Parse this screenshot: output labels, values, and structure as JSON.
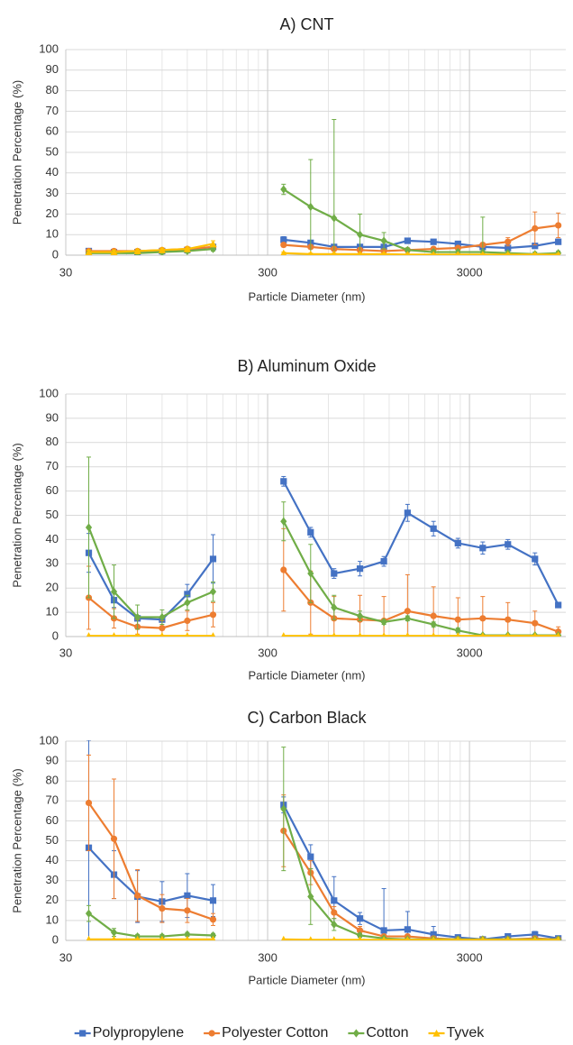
{
  "chart_data": [
    {
      "type": "line",
      "title": "A) CNT",
      "x_label": "Particle Diameter (nm)",
      "y_label": "Penetration Percentage (%)",
      "x": [
        39,
        52,
        68,
        90,
        120,
        161,
        360,
        490,
        640,
        860,
        1130,
        1480,
        1990,
        2630,
        3490,
        4650,
        6330,
        8260
      ],
      "xlim": [
        30,
        9000
      ],
      "xticks": [
        30,
        300,
        3000
      ],
      "log_x": true,
      "ylim": [
        0,
        100
      ],
      "yticks": [
        0,
        10,
        20,
        30,
        40,
        50,
        60,
        70,
        80,
        90,
        100
      ],
      "grid": true,
      "legend": "bottom",
      "series": [
        {
          "name": "Polypropylene",
          "color": "#4472c4",
          "marker": "square",
          "values": [
            2,
            1.5,
            1.5,
            2,
            2.5,
            4,
            7.5,
            6,
            4,
            4,
            4,
            7,
            6.5,
            5.5,
            4,
            3.5,
            4.5,
            6.5
          ],
          "errors": [
            1,
            1,
            1,
            1,
            1,
            1,
            1.5,
            1,
            1,
            1,
            1,
            1,
            1,
            1,
            1,
            1,
            1,
            1
          ]
        },
        {
          "name": "Polyester Cotton",
          "color": "#ed7d31",
          "marker": "circle",
          "values": [
            2,
            2,
            2,
            2.5,
            3,
            4,
            5,
            4,
            3,
            2.5,
            2,
            2.5,
            3,
            3.5,
            5,
            6.5,
            13,
            14.5
          ],
          "errors": [
            1,
            1,
            1,
            1,
            1,
            1,
            1,
            1,
            1,
            1,
            1,
            1,
            1,
            1,
            1,
            2,
            8,
            6
          ]
        },
        {
          "name": "Cotton",
          "color": "#70ad47",
          "marker": "diamond",
          "values": [
            1,
            1,
            1,
            1.5,
            2,
            3,
            32,
            23.5,
            18,
            10,
            7,
            2.5,
            1.5,
            1.5,
            1.5,
            1,
            0.5,
            1
          ],
          "errors": [
            1,
            1,
            1,
            1,
            1,
            1,
            2.5,
            23,
            48,
            10,
            4,
            1,
            1,
            1,
            17,
            1,
            1,
            1
          ]
        },
        {
          "name": "Tyvek",
          "color": "#ffc000",
          "marker": "triangle",
          "values": [
            1.5,
            1.5,
            2,
            2.5,
            3,
            5.5,
            1,
            0.5,
            0.5,
            0.5,
            0.5,
            0.3,
            0.3,
            0.3,
            0.3,
            0.3,
            0.3,
            0.3
          ],
          "errors": [
            1,
            1,
            1,
            1,
            1,
            1.5,
            0.5,
            0.5,
            0.5,
            0.5,
            0.5,
            0.5,
            0.5,
            0.5,
            0.5,
            0.5,
            0.5,
            0.5
          ]
        }
      ]
    },
    {
      "type": "line",
      "title": "B) Aluminum Oxide",
      "x_label": "Particle Diameter (nm)",
      "y_label": "Penetration Percentage (%)",
      "x": [
        39,
        52,
        68,
        90,
        120,
        161,
        360,
        490,
        640,
        860,
        1130,
        1480,
        1990,
        2630,
        3490,
        4650,
        6330,
        8260
      ],
      "xlim": [
        30,
        9000
      ],
      "xticks": [
        30,
        300,
        3000
      ],
      "log_x": true,
      "ylim": [
        0,
        100
      ],
      "yticks": [
        0,
        10,
        20,
        30,
        40,
        50,
        60,
        70,
        80,
        90,
        100
      ],
      "grid": true,
      "series": [
        {
          "color": "#4472c4",
          "marker": "square",
          "values": [
            34.5,
            15,
            7.5,
            7,
            17.5,
            32,
            64,
            43,
            26,
            28,
            31,
            51,
            44.5,
            38.5,
            36.5,
            38,
            32,
            13
          ],
          "errors": [
            8,
            3,
            1,
            1,
            4,
            10,
            2,
            2,
            2,
            3,
            2,
            3.5,
            3,
            2,
            2.5,
            2,
            2.5,
            1
          ]
        },
        {
          "color": "#ed7d31",
          "marker": "circle",
          "values": [
            16,
            7.5,
            4,
            3.5,
            6.5,
            9,
            27.5,
            14,
            7.5,
            7,
            6.5,
            10.5,
            8.5,
            7,
            7.5,
            7,
            5.5,
            2
          ],
          "errors": [
            13,
            4,
            3,
            3,
            4,
            5,
            17,
            13,
            9,
            10,
            10,
            15,
            12,
            9,
            9,
            7,
            5,
            2
          ]
        },
        {
          "color": "#70ad47",
          "marker": "diamond",
          "values": [
            45,
            18.5,
            8,
            8,
            14,
            18.5,
            47.5,
            26,
            12,
            8.5,
            6,
            7.5,
            5,
            2.5,
            0.5,
            0.5,
            0.5,
            0.5
          ],
          "errors": [
            29,
            11,
            5,
            3,
            3,
            4,
            8,
            12,
            5,
            2,
            1,
            1,
            1,
            1,
            0.5,
            0.5,
            0.5,
            0.5
          ]
        },
        {
          "color": "#ffc000",
          "marker": "triangle",
          "values": [
            0.3,
            0.3,
            0.3,
            0.3,
            0.3,
            0.3,
            0.3,
            0.3,
            0.3,
            0.3,
            0.3,
            0.3,
            0.3,
            0.3,
            0.3,
            0.3,
            0.3,
            0.3
          ],
          "errors": [
            0,
            0,
            0,
            0,
            0,
            0,
            0,
            0,
            0,
            0,
            0,
            0,
            0,
            0,
            0,
            0,
            0,
            0
          ]
        }
      ]
    },
    {
      "type": "line",
      "title": "C) Carbon Black",
      "x_label": "Particle Diameter (nm)",
      "y_label": "Penetration Percentage (%)",
      "x": [
        39,
        52,
        68,
        90,
        120,
        161,
        360,
        490,
        640,
        860,
        1130,
        1480,
        1990,
        2630,
        3490,
        4650,
        6330,
        8260
      ],
      "xlim": [
        30,
        9000
      ],
      "xticks": [
        30,
        300,
        3000
      ],
      "log_x": true,
      "ylim": [
        0,
        100
      ],
      "yticks": [
        0,
        10,
        20,
        30,
        40,
        50,
        60,
        70,
        80,
        90,
        100
      ],
      "grid": true,
      "series": [
        {
          "color": "#4472c4",
          "marker": "square",
          "values": [
            46.5,
            33,
            22,
            19.5,
            22.5,
            20,
            68,
            42,
            20,
            11,
            5,
            5.5,
            3,
            1.5,
            0.5,
            2,
            3,
            1
          ],
          "errors": [
            54,
            12,
            13,
            10,
            11,
            8,
            4,
            6,
            12,
            3,
            21,
            9,
            4,
            1,
            0.5,
            1,
            1.5,
            0.5
          ]
        },
        {
          "color": "#ed7d31",
          "marker": "circle",
          "values": [
            69,
            51,
            22.5,
            16,
            15,
            10.5,
            55,
            34,
            14,
            5,
            2,
            2,
            1,
            0.5,
            0.5,
            0.5,
            1,
            0.5
          ],
          "errors": [
            24,
            30,
            13,
            7,
            6,
            3,
            18,
            6,
            3,
            2,
            1,
            1,
            1,
            0.5,
            0.5,
            0.5,
            0.5,
            0.5
          ]
        },
        {
          "color": "#70ad47",
          "marker": "diamond",
          "values": [
            13.5,
            4,
            2,
            2,
            3,
            2.5,
            66,
            22,
            8,
            2.5,
            1,
            0.5,
            0.5,
            0.5,
            0.5,
            0.5,
            0.5,
            0.5
          ],
          "errors": [
            4,
            2,
            1,
            1,
            1,
            1,
            31,
            14,
            3,
            1,
            0.5,
            0.5,
            0.5,
            0.5,
            0.5,
            0.5,
            0.5,
            0.5
          ]
        },
        {
          "color": "#ffc000",
          "marker": "triangle",
          "values": [
            0.5,
            0.5,
            0.5,
            0.5,
            0.5,
            0.5,
            0.5,
            0.3,
            0.3,
            0.3,
            0.3,
            0.3,
            0.3,
            0.3,
            0.3,
            0.3,
            0.3,
            0.3
          ],
          "errors": [
            0,
            0,
            0,
            0,
            0,
            0,
            0,
            0,
            0,
            0,
            0,
            0,
            0,
            0,
            0,
            0,
            0,
            0
          ]
        }
      ]
    }
  ]
}
